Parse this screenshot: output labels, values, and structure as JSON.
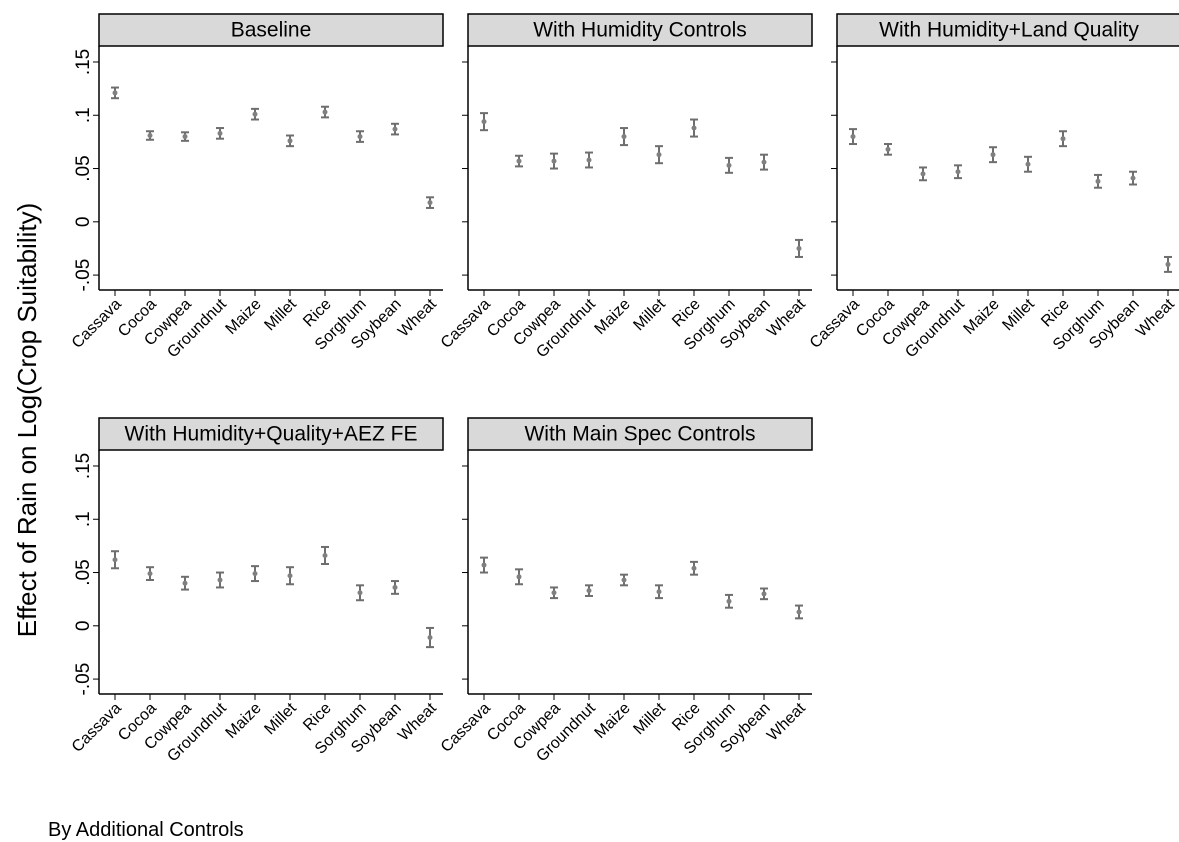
{
  "ylabel": "Effect of Rain on Log(Crop Suitability)",
  "note": "By Additional Controls",
  "ylim": [
    -0.064,
    0.165
  ],
  "yticks": [
    {
      "value": -0.05,
      "label": "-.05"
    },
    0,
    {
      "value": 0.05,
      "label": ".05"
    },
    {
      "value": 0.1,
      "label": ".1"
    },
    {
      "value": 0.15,
      "label": ".15"
    }
  ],
  "chart_data": [
    {
      "type": "errorbar",
      "title": "Baseline",
      "color": "#808080",
      "categories": [
        "Cassava",
        "Cocoa",
        "Cowpea",
        "Groundnut",
        "Maize",
        "Millet",
        "Rice",
        "Sorghum",
        "Soybean",
        "Wheat"
      ],
      "values": [
        0.121,
        0.081,
        0.08,
        0.083,
        0.101,
        0.076,
        0.103,
        0.08,
        0.087,
        0.018
      ],
      "errors": [
        0.005,
        0.004,
        0.004,
        0.005,
        0.005,
        0.005,
        0.005,
        0.005,
        0.005,
        0.005
      ]
    },
    {
      "type": "errorbar",
      "title": "With Humidity Controls",
      "color": "#808080",
      "categories": [
        "Cassava",
        "Cocoa",
        "Cowpea",
        "Groundnut",
        "Maize",
        "Millet",
        "Rice",
        "Sorghum",
        "Soybean",
        "Wheat"
      ],
      "values": [
        0.094,
        0.057,
        0.057,
        0.058,
        0.08,
        0.063,
        0.088,
        0.053,
        0.056,
        -0.025
      ],
      "errors": [
        0.008,
        0.005,
        0.007,
        0.007,
        0.008,
        0.008,
        0.008,
        0.007,
        0.007,
        0.008
      ]
    },
    {
      "type": "errorbar",
      "title": "With Humidity+Land Quality",
      "color": "#808080",
      "categories": [
        "Cassava",
        "Cocoa",
        "Cowpea",
        "Groundnut",
        "Maize",
        "Millet",
        "Rice",
        "Sorghum",
        "Soybean",
        "Wheat"
      ],
      "values": [
        0.08,
        0.068,
        0.045,
        0.047,
        0.063,
        0.054,
        0.078,
        0.038,
        0.041,
        -0.04
      ],
      "errors": [
        0.007,
        0.005,
        0.006,
        0.006,
        0.007,
        0.007,
        0.007,
        0.006,
        0.006,
        0.007
      ]
    },
    {
      "type": "errorbar",
      "title": "With Humidity+Quality+AEZ FE",
      "color": "#808080",
      "categories": [
        "Cassava",
        "Cocoa",
        "Cowpea",
        "Groundnut",
        "Maize",
        "Millet",
        "Rice",
        "Sorghum",
        "Soybean",
        "Wheat"
      ],
      "values": [
        0.062,
        0.049,
        0.04,
        0.043,
        0.049,
        0.047,
        0.066,
        0.031,
        0.036,
        -0.011
      ],
      "errors": [
        0.008,
        0.006,
        0.006,
        0.007,
        0.007,
        0.008,
        0.008,
        0.007,
        0.006,
        0.009
      ]
    },
    {
      "type": "errorbar",
      "title": "With Main Spec Controls",
      "color": "#808080",
      "categories": [
        "Cassava",
        "Cocoa",
        "Cowpea",
        "Groundnut",
        "Maize",
        "Millet",
        "Rice",
        "Sorghum",
        "Soybean",
        "Wheat"
      ],
      "values": [
        0.057,
        0.046,
        0.031,
        0.033,
        0.043,
        0.032,
        0.054,
        0.023,
        0.03,
        0.013
      ],
      "errors": [
        0.007,
        0.007,
        0.005,
        0.005,
        0.005,
        0.006,
        0.006,
        0.006,
        0.005,
        0.006
      ]
    }
  ]
}
